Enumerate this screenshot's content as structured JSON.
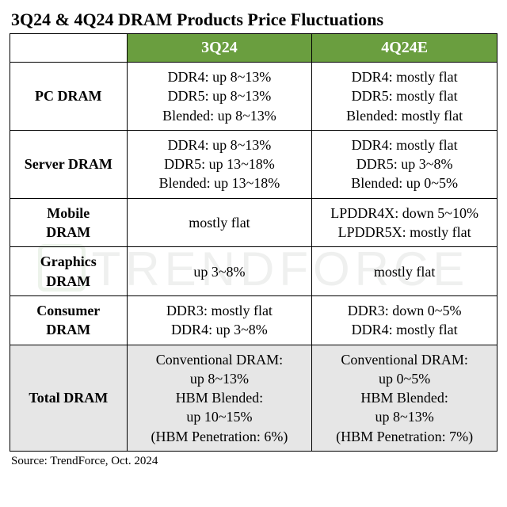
{
  "title": "3Q24 & 4Q24 DRAM Products Price Fluctuations",
  "columns": {
    "c1": "3Q24",
    "c2": "4Q24E"
  },
  "header_bg": "#6a9e3f",
  "header_fg": "#ffffff",
  "total_row_bg": "#e6e6e6",
  "border_color": "#000000",
  "font_family": "Times New Roman",
  "watermark_text": "TrendForce",
  "source": "Source: TrendForce, Oct. 2024",
  "rows": {
    "pc": {
      "label": "PC DRAM",
      "q3": [
        "DDR4: up 8~13%",
        "DDR5: up 8~13%",
        "Blended: up 8~13%"
      ],
      "q4": [
        "DDR4: mostly flat",
        "DDR5: mostly flat",
        "Blended: mostly flat"
      ]
    },
    "server": {
      "label": "Server DRAM",
      "q3": [
        "DDR4: up 8~13%",
        "DDR5: up 13~18%",
        "Blended: up 13~18%"
      ],
      "q4": [
        "DDR4: mostly flat",
        "DDR5: up 3~8%",
        "Blended: up 0~5%"
      ]
    },
    "mobile": {
      "label_l1": "Mobile",
      "label_l2": "DRAM",
      "q3": [
        "mostly flat"
      ],
      "q4": [
        "LPDDR4X: down 5~10%",
        "LPDDR5X: mostly flat"
      ]
    },
    "graphics": {
      "label_l1": "Graphics",
      "label_l2": "DRAM",
      "q3": [
        "up 3~8%"
      ],
      "q4": [
        "mostly flat"
      ]
    },
    "consumer": {
      "label_l1": "Consumer",
      "label_l2": "DRAM",
      "q3": [
        "DDR3: mostly flat",
        "DDR4: up 3~8%"
      ],
      "q4": [
        "DDR3: down 0~5%",
        "DDR4: mostly flat"
      ]
    },
    "total": {
      "label": "Total DRAM",
      "q3": [
        "Conventional DRAM:",
        "up 8~13%",
        "HBM Blended:",
        "up 10~15%",
        "(HBM Penetration: 6%)"
      ],
      "q4": [
        "Conventional DRAM:",
        "up 0~5%",
        "HBM Blended:",
        "up 8~13%",
        "(HBM Penetration: 7%)"
      ]
    }
  }
}
